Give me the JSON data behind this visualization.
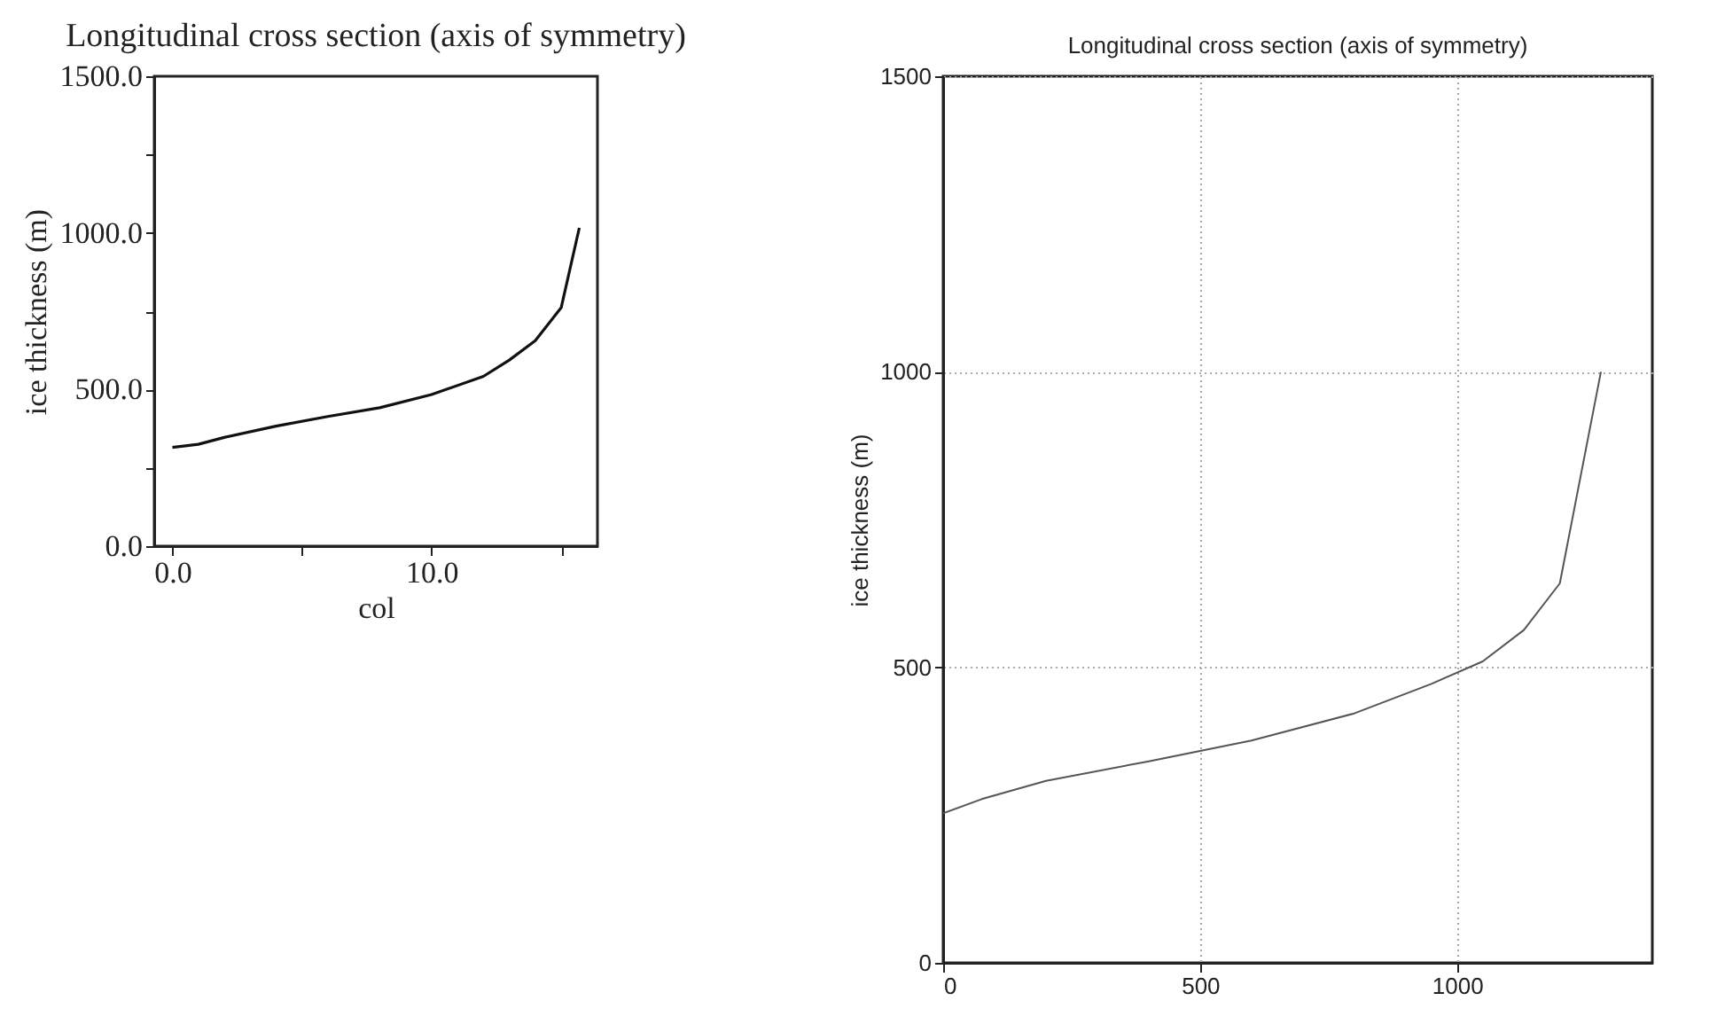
{
  "chart_data": [
    {
      "type": "line",
      "title": "Longitudinal cross section (axis of symmetry)",
      "xlabel": "col",
      "ylabel": "ice thickness (m)",
      "grid": false,
      "xlim": [
        -0.7,
        16.4
      ],
      "xticks": [
        {
          "value": 0,
          "label": "0.0"
        },
        {
          "value": 5,
          "label": null
        },
        {
          "value": 10,
          "label": "10.0"
        },
        {
          "value": 15,
          "label": null
        }
      ],
      "ylim": [
        0,
        1500
      ],
      "yticks": [
        {
          "value": 0,
          "label": "0.0"
        },
        {
          "value": 250,
          "label": null
        },
        {
          "value": 500,
          "label": "500.0"
        },
        {
          "value": 750,
          "label": null
        },
        {
          "value": 1000,
          "label": "1000.0"
        },
        {
          "value": 1250,
          "label": null
        },
        {
          "value": 1500,
          "label": "1500.0"
        }
      ],
      "series": [
        {
          "color": "#111111",
          "x": [
            0,
            1,
            2,
            4,
            6,
            8,
            10,
            12,
            13,
            14,
            15,
            15.7
          ],
          "values": [
            315,
            325,
            347,
            383,
            414,
            442,
            484,
            542,
            594,
            656,
            761,
            1016
          ]
        }
      ]
    },
    {
      "type": "line",
      "title": "Longitudinal cross section (axis of symmetry)",
      "ylabel": "ice thickness (m)",
      "grid": true,
      "xlim": [
        0,
        1380
      ],
      "xticks": [
        0,
        500,
        1000
      ],
      "ylim": [
        0,
        1500
      ],
      "yticks": [
        0,
        500,
        1000,
        1500
      ],
      "series": [
        {
          "color": "#555555",
          "x": [
            0,
            75,
            200,
            400,
            600,
            800,
            950,
            1050,
            1130,
            1200,
            1280
          ],
          "values": [
            253,
            277,
            308,
            341,
            376,
            422,
            472,
            510,
            563,
            642,
            1000
          ]
        }
      ]
    }
  ]
}
